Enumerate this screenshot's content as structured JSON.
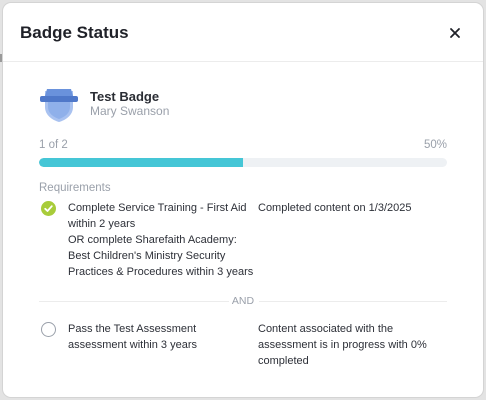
{
  "modal": {
    "title": "Badge Status"
  },
  "badge": {
    "name": "Test Badge",
    "user": "Mary Swanson"
  },
  "progress": {
    "count_label": "1 of 2",
    "percent_label": "50%",
    "fraction": 0.5
  },
  "requirements": {
    "heading": "Requirements",
    "group1": {
      "completed": true,
      "line1": "Complete Service Training - First Aid",
      "line2": "within 2 years",
      "alt1": "OR complete Sharefaith Academy:",
      "alt2": "Best Children's Ministry Security",
      "alt3": "Practices & Procedures within 3 years",
      "status": "Completed content on 1/3/2025"
    },
    "separator": "AND",
    "group2": {
      "completed": false,
      "line1": "Pass the Test Assessment",
      "line2": "assessment within 3 years",
      "status1": "Content associated with the",
      "status2": "assessment is in progress with 0%",
      "status3": "completed"
    }
  },
  "colors": {
    "progress_fill": "#45c6d6",
    "check_done": "#a8cc3a",
    "badge_blue": "#5b86d6"
  },
  "icons": {
    "close": "close-icon",
    "badge": "badge-shield-icon",
    "check": "check-circle-icon",
    "empty": "empty-circle-icon"
  }
}
